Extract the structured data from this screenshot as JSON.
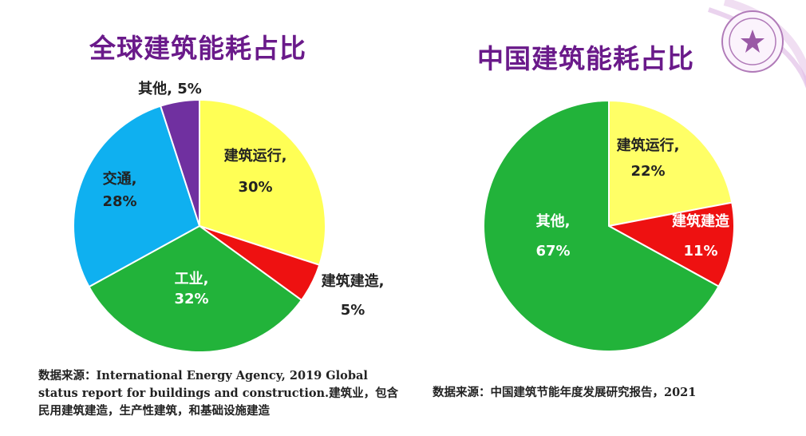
{
  "chart_data": [
    {
      "type": "pie",
      "title": "全球建筑能耗占比",
      "slices": [
        {
          "name": "建筑运行,",
          "label": "30%",
          "value": 30,
          "color": "#ffff55"
        },
        {
          "name": "建筑建造,",
          "label": "5%",
          "value": 5,
          "color": "#ee1111"
        },
        {
          "name": "工业,",
          "label": "32%",
          "value": 32,
          "color": "#22b33a"
        },
        {
          "name": "交通,",
          "label": "28%",
          "value": 28,
          "color": "#0fb0f0"
        },
        {
          "name": "其他,",
          "label": "5%",
          "value": 5,
          "color": "#7030a0"
        }
      ],
      "source": "数据来源：International Energy Agency, 2019 Global status report for buildings and construction.建筑业，包含民用建筑建造，生产性建筑，和基础设施建造"
    },
    {
      "type": "pie",
      "title": "中国建筑能耗占比",
      "slices": [
        {
          "name": "建筑运行,",
          "label": "22%",
          "value": 22,
          "color": "#ffff66"
        },
        {
          "name": "建筑建造",
          "label": "11%",
          "value": 11,
          "color": "#ee1111"
        },
        {
          "name": "其他,",
          "label": "67%",
          "value": 67,
          "color": "#22b33a"
        }
      ],
      "source": "数据来源：中国建筑节能年度发展研究报告，2021"
    }
  ]
}
